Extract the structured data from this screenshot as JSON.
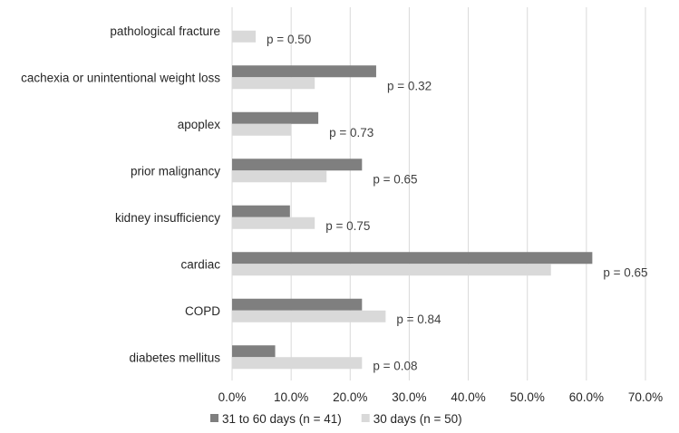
{
  "chart_data": {
    "type": "bar",
    "orientation": "horizontal",
    "title": "",
    "xlabel": "",
    "ylabel": "",
    "xlim": [
      0,
      70
    ],
    "tick_values": [
      0,
      10,
      20,
      30,
      40,
      50,
      60,
      70
    ],
    "tick_labels": [
      "0.0%",
      "10.0%",
      "20.0%",
      "30.0%",
      "40.0%",
      "50.0%",
      "60.0%",
      "70.0%"
    ],
    "grid": true,
    "legend_position": "bottom",
    "categories": [
      "pathological fracture",
      "cachexia or unintentional weight loss",
      "apoplex",
      "prior malignancy",
      "kidney insufficiency",
      "cardiac",
      "COPD",
      "diabetes mellitus"
    ],
    "series": [
      {
        "name": "31 to 60 days (n = 41)",
        "color": "#7f7f7f",
        "values": [
          0,
          24.4,
          14.6,
          22.0,
          9.8,
          61.0,
          22.0,
          7.3
        ]
      },
      {
        "name": "30 days (n = 50)",
        "color": "#d9d9d9",
        "values": [
          4.0,
          14.0,
          10.0,
          16.0,
          14.0,
          54.0,
          26.0,
          22.0
        ]
      }
    ],
    "annotations": [
      "p = 0.50",
      "p = 0.32",
      "p = 0.73",
      "p = 0.65",
      "p = 0.75",
      "p = 0.65",
      "p = 0.84",
      "p = 0.08"
    ]
  }
}
